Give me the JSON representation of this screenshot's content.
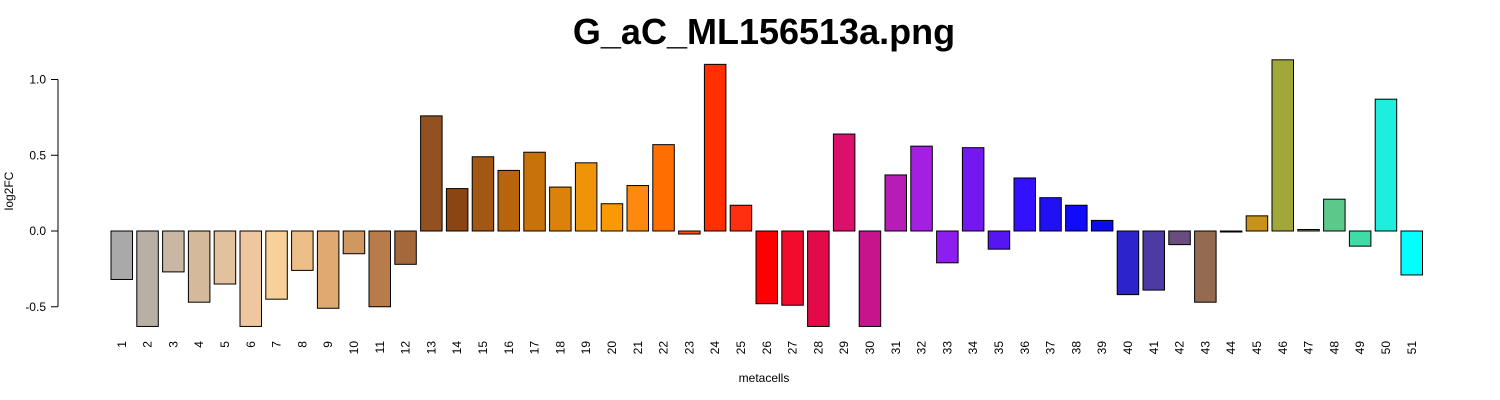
{
  "chart_data": {
    "type": "bar",
    "title": "G_aC_ML156513a.png",
    "xlabel": "metacells",
    "ylabel": "log2FC",
    "ylim": [
      -0.62,
      1.14
    ],
    "yticks": [
      -0.5,
      0.0,
      0.5,
      1.0
    ],
    "ytick_labels": [
      "-0.5",
      "0.0",
      "0.5",
      "1.0"
    ],
    "grid": false,
    "categories": [
      "1",
      "2",
      "3",
      "4",
      "5",
      "6",
      "7",
      "8",
      "9",
      "10",
      "11",
      "12",
      "13",
      "14",
      "15",
      "16",
      "17",
      "18",
      "19",
      "20",
      "21",
      "22",
      "23",
      "24",
      "25",
      "26",
      "27",
      "28",
      "29",
      "30",
      "31",
      "32",
      "33",
      "34",
      "35",
      "36",
      "37",
      "38",
      "39",
      "40",
      "41",
      "42",
      "43",
      "44",
      "45",
      "46",
      "47",
      "48",
      "49",
      "50",
      "51"
    ],
    "values": [
      -0.32,
      -0.63,
      -0.27,
      -0.47,
      -0.35,
      -0.63,
      -0.45,
      -0.26,
      -0.51,
      -0.15,
      -0.5,
      -0.22,
      0.76,
      0.28,
      0.49,
      0.4,
      0.52,
      0.29,
      0.45,
      0.18,
      0.3,
      0.57,
      -0.02,
      1.1,
      0.17,
      -0.48,
      -0.49,
      -0.63,
      0.64,
      -0.63,
      0.37,
      0.56,
      -0.21,
      0.55,
      -0.12,
      0.35,
      0.22,
      0.17,
      0.07,
      -0.42,
      -0.39,
      -0.09,
      -0.47,
      0.0,
      0.1,
      1.13,
      0.01,
      0.21,
      -0.1,
      0.87,
      -0.29
    ],
    "colors": [
      "#a9a9a9",
      "#b8b0a4",
      "#c9b7a3",
      "#d4b99a",
      "#e2c29c",
      "#eec79f",
      "#f7d199",
      "#edbe87",
      "#deaa72",
      "#d19760",
      "#b87b4a",
      "#a4683a",
      "#935020",
      "#8b4512",
      "#a35714",
      "#b8640c",
      "#c8720a",
      "#dc820a",
      "#ef9308",
      "#fb9902",
      "#ff880f",
      "#ff6e00",
      "#ff5014",
      "#ff2f00",
      "#ff2f10",
      "#ff0000",
      "#f20c2c",
      "#e20b48",
      "#db106b",
      "#c7138c",
      "#b51db5",
      "#a41fe2",
      "#8c1ff0",
      "#7318f0",
      "#5417f4",
      "#3310ff",
      "#1f11f3",
      "#100cfa",
      "#0b0bef",
      "#2c23cd",
      "#4d3aa5",
      "#6a4d80",
      "#946a50",
      "#a06a3c",
      "#c9921a",
      "#a2a73a",
      "#6aa040",
      "#5cc98a",
      "#40dca8",
      "#1eeedd",
      "#00ffff"
    ]
  }
}
